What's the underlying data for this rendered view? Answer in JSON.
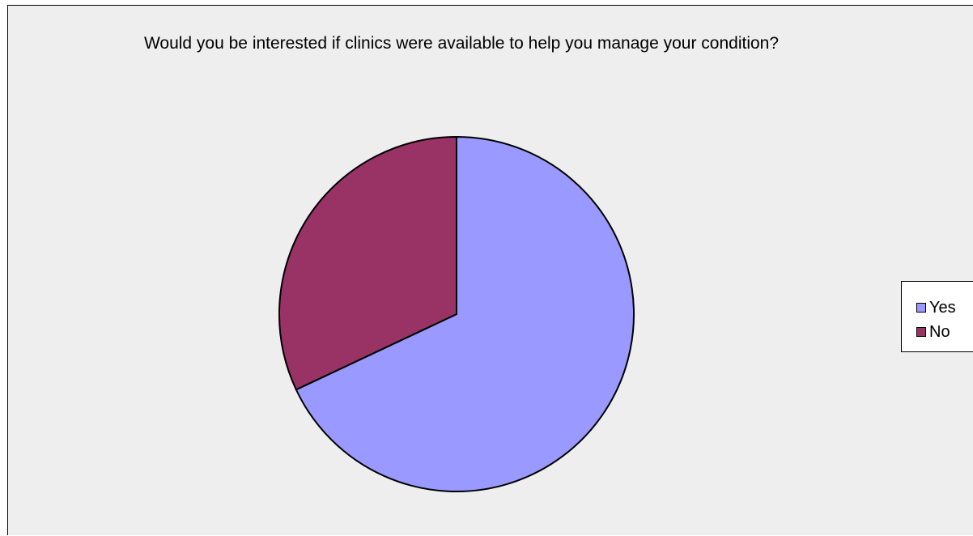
{
  "chart_data": {
    "type": "pie",
    "title": "Would you be interested if clinics were available to help you manage your condition?",
    "slices": [
      {
        "label": "Yes",
        "value": 68,
        "color": "#9999ff"
      },
      {
        "label": "No",
        "value": 32,
        "color": "#993366"
      }
    ],
    "legend_position": "right"
  }
}
